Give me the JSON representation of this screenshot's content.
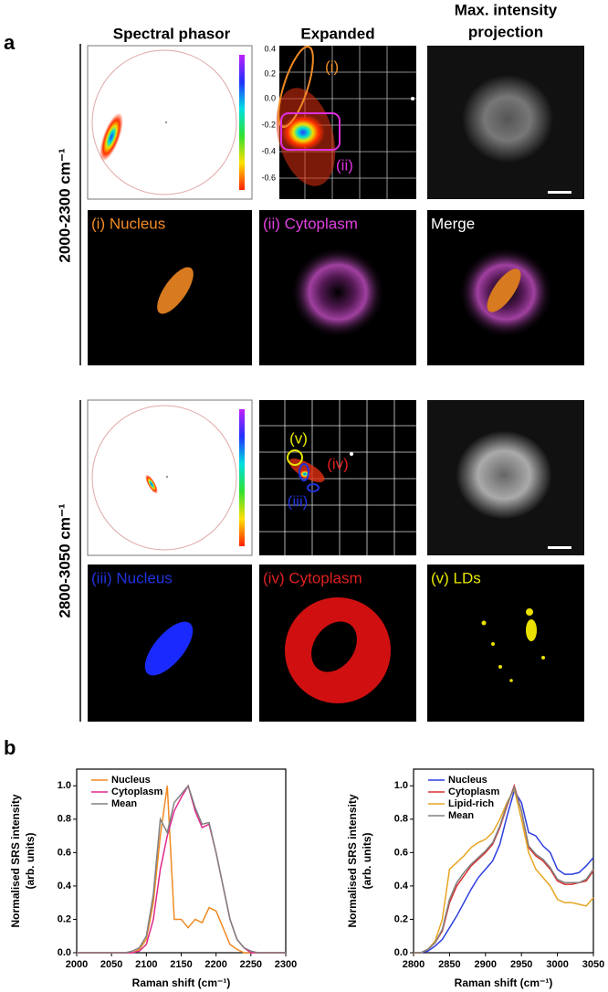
{
  "panel_labels": [
    "a",
    "b"
  ],
  "column_headers": [
    "Spectral phasor",
    "Expanded",
    [
      "Max. intensity",
      "projection"
    ]
  ],
  "row_labels": [
    "2000-2300 cm⁻¹",
    "2800-3050 cm⁻¹"
  ],
  "expanded_yticks": [
    "0.4",
    "0.2",
    "0.0",
    "-0.2",
    "-0.4",
    "-0.6"
  ],
  "phasor_annotations": {
    "top": [
      "(i)",
      "(ii)"
    ],
    "bottom": [
      "(v)",
      "(iv)",
      "(iii)"
    ]
  },
  "captions": [
    "(i) Nucleus",
    "(ii) Cytoplasm",
    "Merge",
    "(iii) Nucleus",
    "(iv) Cytoplasm",
    "(v) LDs"
  ],
  "chart_data": [
    {
      "type": "line",
      "xlabel": "Raman shift (cm⁻¹)",
      "ylabel": [
        "Normalised SRS intensity",
        "(arb. units)"
      ],
      "x": [
        2000,
        2010,
        2020,
        2030,
        2040,
        2050,
        2060,
        2070,
        2080,
        2090,
        2100,
        2110,
        2120,
        2130,
        2140,
        2150,
        2160,
        2170,
        2180,
        2190,
        2200,
        2210,
        2220,
        2230,
        2240,
        2250,
        2260,
        2270,
        2280,
        2290,
        2300
      ],
      "xlim": [
        2000,
        2300
      ],
      "xticks": [
        2000,
        2050,
        2100,
        2150,
        2200,
        2250,
        2300
      ],
      "ylim": [
        0,
        1.1
      ],
      "yticks": [
        {
          "value": 0,
          "label": "0.0"
        },
        0.2,
        0.4,
        0.6,
        0.8,
        {
          "value": 1,
          "label": "1.0"
        }
      ],
      "legend": "upper left",
      "series": [
        {
          "name": "Nucleus",
          "color": "#f08a24",
          "values": [
            0,
            0,
            0,
            0,
            0,
            0,
            0,
            0,
            0,
            0.02,
            0.08,
            0.3,
            0.7,
            1.0,
            0.2,
            0.2,
            0.15,
            0.2,
            0.18,
            0.27,
            0.25,
            0.15,
            0.05,
            0.02,
            0,
            0,
            0,
            0,
            0,
            0,
            0
          ]
        },
        {
          "name": "Cytoplasm",
          "color": "#e0288c",
          "values": [
            0,
            0,
            0,
            0,
            0,
            0,
            0,
            0,
            0,
            0.01,
            0.05,
            0.2,
            0.5,
            0.7,
            0.85,
            0.93,
            1.0,
            0.85,
            0.75,
            0.77,
            0.6,
            0.4,
            0.2,
            0.08,
            0.03,
            0,
            0,
            0,
            0,
            0,
            0
          ]
        },
        {
          "name": "Mean",
          "color": "#808080",
          "values": [
            0,
            0,
            0,
            0,
            0,
            0,
            0,
            0,
            0.01,
            0.03,
            0.1,
            0.35,
            0.8,
            0.72,
            0.9,
            0.95,
            1.0,
            0.87,
            0.77,
            0.78,
            0.6,
            0.4,
            0.2,
            0.08,
            0.03,
            0.01,
            0,
            0,
            0,
            0,
            0
          ]
        }
      ]
    },
    {
      "type": "line",
      "xlabel": "Raman shift (cm⁻¹)",
      "ylabel": [
        "Normalised SRS intensity",
        "(arb. units)"
      ],
      "x": [
        2800,
        2810,
        2820,
        2830,
        2840,
        2850,
        2860,
        2870,
        2880,
        2890,
        2900,
        2910,
        2920,
        2930,
        2940,
        2950,
        2960,
        2970,
        2980,
        2990,
        3000,
        3010,
        3020,
        3030,
        3040,
        3050
      ],
      "xlim": [
        2800,
        3050
      ],
      "xticks": [
        2800,
        2850,
        2900,
        2950,
        3000,
        3050
      ],
      "ylim": [
        0,
        1.1
      ],
      "yticks": [
        {
          "value": 0,
          "label": "0.0"
        },
        0.2,
        0.4,
        0.6,
        0.8,
        {
          "value": 1,
          "label": "1.0"
        }
      ],
      "legend": "upper left",
      "series": [
        {
          "name": "Nucleus",
          "color": "#2b3ee0",
          "values": [
            0,
            0,
            0.01,
            0.04,
            0.08,
            0.15,
            0.22,
            0.3,
            0.38,
            0.45,
            0.5,
            0.55,
            0.65,
            0.82,
            0.97,
            0.9,
            0.72,
            0.7,
            0.64,
            0.6,
            0.5,
            0.47,
            0.47,
            0.48,
            0.52,
            0.57
          ]
        },
        {
          "name": "Cytoplasm",
          "color": "#d83030",
          "values": [
            0,
            0,
            0.02,
            0.06,
            0.13,
            0.3,
            0.4,
            0.46,
            0.52,
            0.56,
            0.6,
            0.65,
            0.75,
            0.88,
            1.0,
            0.85,
            0.63,
            0.58,
            0.55,
            0.5,
            0.43,
            0.41,
            0.41,
            0.42,
            0.43,
            0.49
          ]
        },
        {
          "name": "Lipid-rich",
          "color": "#e8a520",
          "values": [
            0,
            0,
            0.02,
            0.07,
            0.2,
            0.5,
            0.54,
            0.58,
            0.63,
            0.66,
            0.68,
            0.72,
            0.8,
            0.9,
            0.98,
            0.8,
            0.6,
            0.5,
            0.45,
            0.4,
            0.32,
            0.3,
            0.3,
            0.29,
            0.28,
            0.33
          ]
        },
        {
          "name": "Mean",
          "color": "#808080",
          "values": [
            0,
            0,
            0.02,
            0.06,
            0.14,
            0.32,
            0.42,
            0.48,
            0.53,
            0.57,
            0.61,
            0.66,
            0.76,
            0.89,
            0.99,
            0.85,
            0.64,
            0.59,
            0.56,
            0.51,
            0.44,
            0.42,
            0.42,
            0.42,
            0.44,
            0.5
          ]
        }
      ]
    }
  ]
}
